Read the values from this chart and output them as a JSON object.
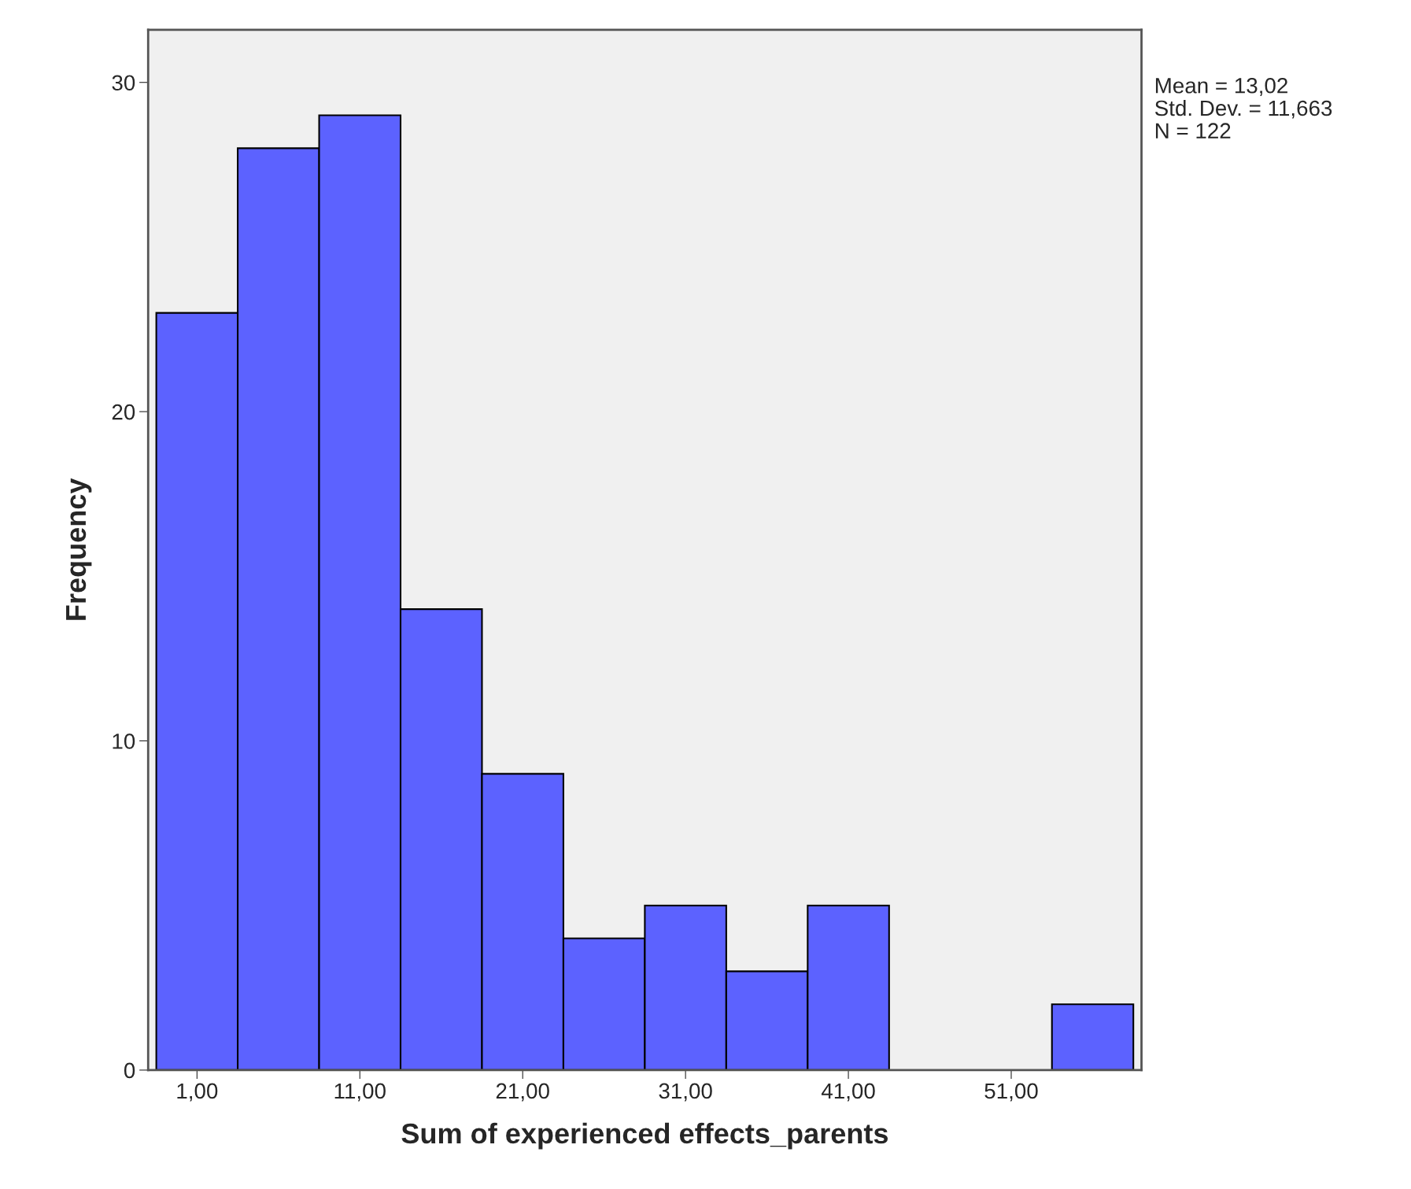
{
  "chart_data": {
    "type": "histogram",
    "xlabel": "Sum of experienced effects_parents",
    "ylabel": "Frequency",
    "bins": [
      -1.5,
      3.5,
      8.5,
      13.5,
      18.5,
      23.5,
      28.5,
      33.5,
      38.5,
      43.5,
      48.5,
      53.5,
      58.5
    ],
    "values": [
      23,
      28,
      29,
      14,
      9,
      4,
      5,
      3,
      5,
      0,
      0,
      2
    ],
    "color": "#5c62ff",
    "xlim": [
      -2,
      59
    ],
    "ylim": [
      0,
      31.6
    ],
    "xticks": [
      {
        "value": 1,
        "label": "1,00"
      },
      {
        "value": 11,
        "label": "11,00"
      },
      {
        "value": 21,
        "label": "21,00"
      },
      {
        "value": 31,
        "label": "31,00"
      },
      {
        "value": 41,
        "label": "41,00"
      },
      {
        "value": 51,
        "label": "51,00"
      }
    ],
    "yticks": [
      0,
      10,
      20,
      30
    ],
    "grid": false,
    "annotations": [
      "Mean = 13,02",
      "Std. Dev. = 11,663",
      "N = 122"
    ]
  }
}
